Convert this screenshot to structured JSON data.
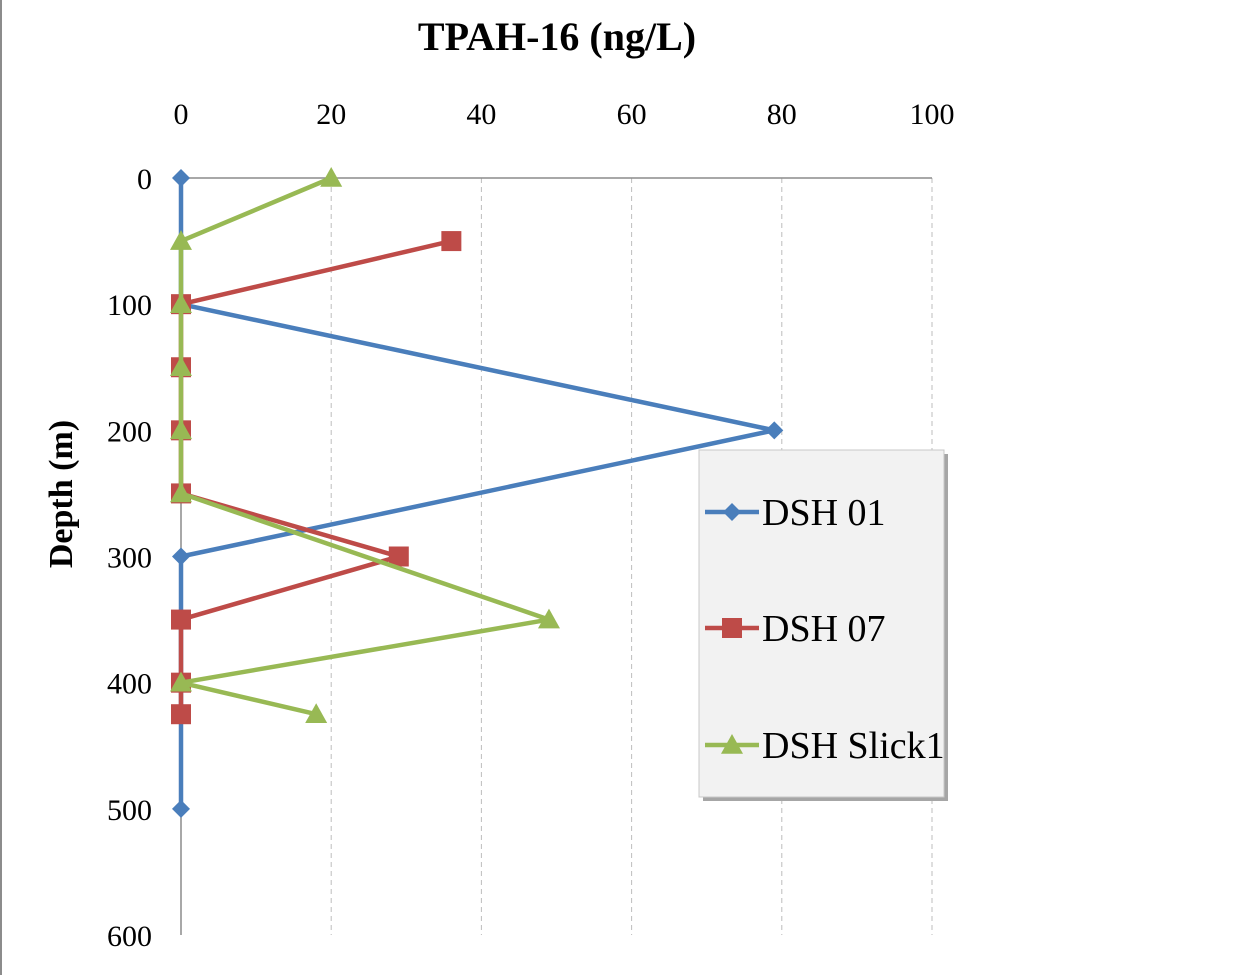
{
  "chart_data": {
    "type": "line",
    "title": "TPAH-16 (ng/L)",
    "xlabel": "TPAH-16 (ng/L)",
    "ylabel": "Depth (m)",
    "xlim": [
      0,
      100
    ],
    "ylim": [
      0,
      600
    ],
    "y_inverted": true,
    "x_axis_position": "top",
    "xticks": [
      0,
      20,
      40,
      60,
      80,
      100
    ],
    "yticks": [
      0,
      100,
      200,
      300,
      400,
      500,
      600
    ],
    "grid": "vertical dashed",
    "legend_position": "right",
    "series": [
      {
        "name": "DSH 01",
        "color": "#4a7ebb",
        "marker": "diamond",
        "points": [
          [
            0,
            0
          ],
          [
            0,
            100
          ],
          [
            79,
            200
          ],
          [
            0,
            300
          ],
          [
            0,
            500
          ]
        ]
      },
      {
        "name": "DSH 07",
        "color": "#be4b48",
        "marker": "square",
        "points": [
          [
            36,
            50
          ],
          [
            0,
            100
          ],
          [
            0,
            150
          ],
          [
            0,
            200
          ],
          [
            0,
            250
          ],
          [
            29,
            300
          ],
          [
            0,
            350
          ],
          [
            0,
            400
          ],
          [
            0,
            425
          ]
        ]
      },
      {
        "name": "DSH Slick1",
        "color": "#98b954",
        "marker": "triangle",
        "points": [
          [
            20,
            0
          ],
          [
            0,
            50
          ],
          [
            0,
            100
          ],
          [
            0,
            150
          ],
          [
            0,
            200
          ],
          [
            0,
            250
          ],
          [
            49,
            350
          ],
          [
            0,
            400
          ],
          [
            18,
            425
          ]
        ]
      }
    ]
  }
}
